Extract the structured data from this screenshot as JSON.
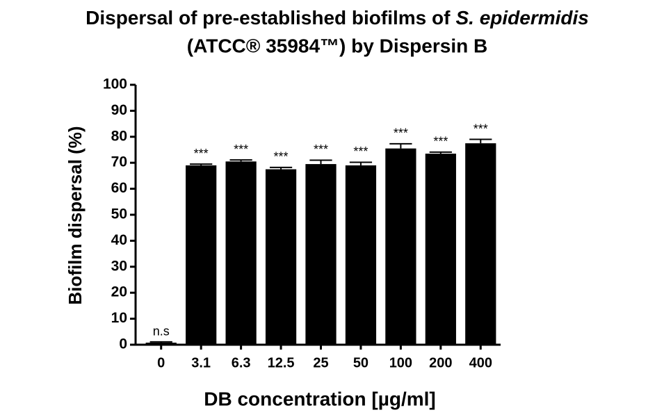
{
  "chart_data": {
    "type": "bar",
    "title": [
      "Dispersal of pre-established biofilms of",
      "S. epidermidis",
      "(ATCC® 35984™) by Dispersin B"
    ],
    "x_label": "DB concentration [µg/ml]",
    "y_label": "Biofilm dispersal (%)",
    "categories": [
      "0",
      "3.1",
      "6.3",
      "12.5",
      "25",
      "50",
      "100",
      "200",
      "400"
    ],
    "values": [
      0.8,
      69,
      70.5,
      67.5,
      69.5,
      69,
      75.5,
      73.5,
      77.5
    ],
    "errors": [
      0.3,
      0.5,
      0.6,
      0.7,
      1.5,
      1.2,
      1.8,
      0.6,
      1.5
    ],
    "annotations": [
      "n.s",
      "***",
      "***",
      "***",
      "***",
      "***",
      "***",
      "***",
      "***"
    ],
    "color": "#000000",
    "ylim": [
      0,
      100
    ],
    "yticks": [
      0,
      10,
      20,
      30,
      40,
      50,
      60,
      70,
      80,
      90,
      100
    ]
  }
}
